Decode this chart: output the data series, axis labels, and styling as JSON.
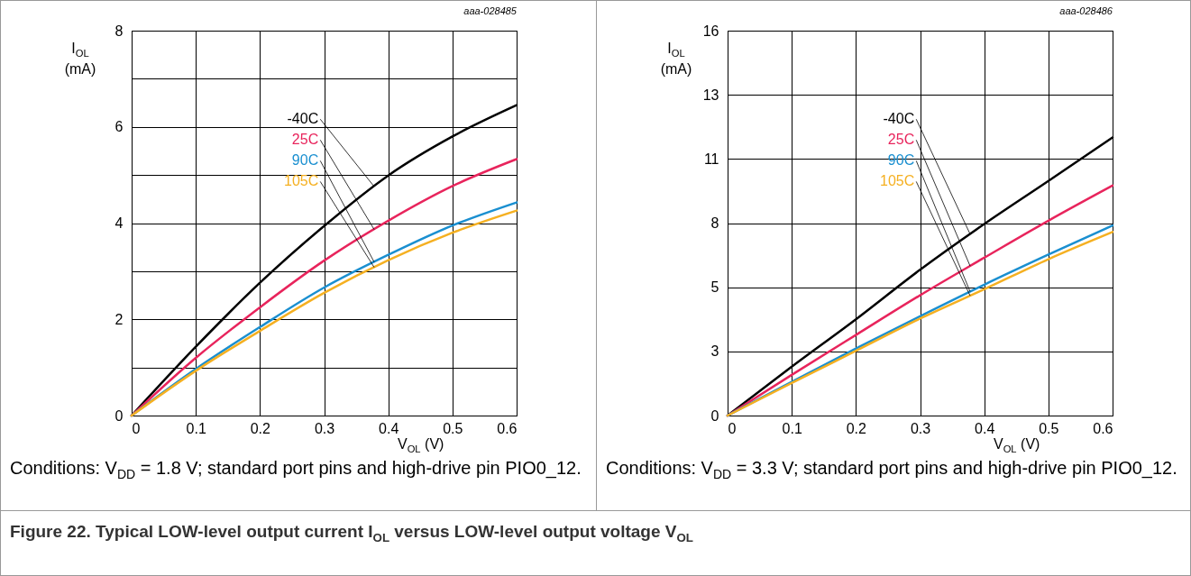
{
  "chart_data": [
    {
      "type": "line",
      "xlabel": "V$_{OL}$ (V)",
      "ylabel": "I$_{OL}$\n(mA)",
      "x": [
        0,
        0.1,
        0.2,
        0.3,
        0.4,
        0.5,
        0.6
      ],
      "series": [
        {
          "name": "-40C",
          "color": "#000000",
          "values": [
            0,
            1.43,
            2.76,
            3.94,
            4.99,
            5.8,
            6.45
          ]
        },
        {
          "name": "25C",
          "color": "#e8245c",
          "values": [
            0,
            1.2,
            2.25,
            3.22,
            4.05,
            4.77,
            5.33
          ]
        },
        {
          "name": "90C",
          "color": "#1a8fd0",
          "values": [
            0,
            0.97,
            1.84,
            2.66,
            3.34,
            3.95,
            4.43
          ]
        },
        {
          "name": "105C",
          "color": "#f5b021",
          "values": [
            0,
            0.93,
            1.76,
            2.55,
            3.23,
            3.8,
            4.26
          ]
        }
      ],
      "xlim": [
        0,
        0.6
      ],
      "ylim": [
        0,
        8
      ],
      "xticks": [
        0,
        0.1,
        0.2,
        0.3,
        0.4,
        0.5,
        0.6
      ],
      "yticks": [
        0,
        {
          "value": 1,
          "label": null
        },
        2,
        {
          "value": 3,
          "label": null
        },
        4,
        {
          "value": 5,
          "label": null
        },
        6,
        {
          "value": 7,
          "label": null
        },
        8
      ],
      "grid": true,
      "annotations": [
        "aaa-028485",
        "Conditions: V$_{DD}$ = 1.8 V; standard port pins and high-drive pin PIO0_12.",
        "Figure 22.  Typical LOW-level output current I$_{OL}$ versus LOW-level output voltage V$_{OL}$"
      ]
    },
    {
      "type": "line",
      "xlabel": "V$_{OL}$ (V)",
      "ylabel": "I$_{OL}$\n(mA)",
      "x": [
        0,
        0.1,
        0.2,
        0.3,
        0.4,
        0.5,
        0.6
      ],
      "series": [
        {
          "name": "-40C",
          "color": "#000000",
          "values": [
            0,
            2.03,
            4.0,
            6.06,
            7.96,
            9.75,
            11.56
          ]
        },
        {
          "name": "25C",
          "color": "#e8245c",
          "values": [
            0,
            1.69,
            3.35,
            5.0,
            6.56,
            8.1,
            9.56
          ]
        },
        {
          "name": "90C",
          "color": "#1a8fd0",
          "values": [
            0,
            1.4,
            2.79,
            4.13,
            5.44,
            6.69,
            7.9
          ]
        },
        {
          "name": "105C",
          "color": "#f5b021",
          "values": [
            0,
            1.35,
            2.69,
            4.03,
            5.25,
            6.5,
            7.63
          ]
        }
      ],
      "xlim": [
        0,
        0.6
      ],
      "ylim": [
        0,
        16
      ],
      "xticks": [
        0,
        0.1,
        0.2,
        0.3,
        0.4,
        0.5,
        0.6
      ],
      "yticks": [
        0,
        {
          "value": 2.667,
          "label": "3"
        },
        {
          "value": 5.333,
          "label": "5"
        },
        8,
        {
          "value": 10.667,
          "label": "11"
        },
        {
          "value": 13.333,
          "label": "13"
        },
        16
      ],
      "grid": true,
      "annotations": [
        "aaa-028486",
        "Conditions: V$_{DD}$ = 3.3 V; standard port pins and high-drive pin PIO0_12."
      ]
    }
  ]
}
